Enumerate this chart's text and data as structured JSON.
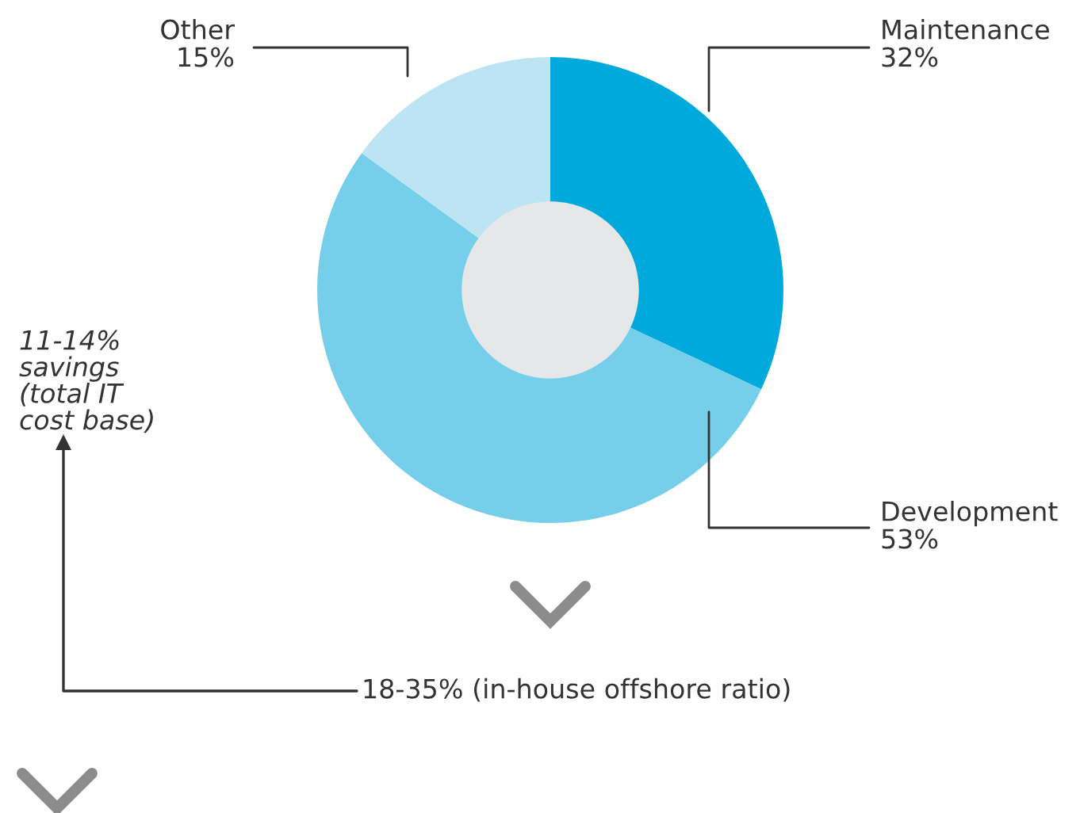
{
  "chart_data": {
    "type": "donut",
    "categories": [
      "Maintenance",
      "Development",
      "Other"
    ],
    "values": [
      32,
      53,
      15
    ],
    "value_labels": [
      "32%",
      "53%",
      "15%"
    ],
    "colors": [
      "#00a9dc",
      "#76cfea",
      "#bde4f3"
    ],
    "legend": false,
    "annotations": [
      "11-14%\nsavings\n(total IT\ncost base)",
      "18-35% (in-house offshore ratio)"
    ]
  }
}
